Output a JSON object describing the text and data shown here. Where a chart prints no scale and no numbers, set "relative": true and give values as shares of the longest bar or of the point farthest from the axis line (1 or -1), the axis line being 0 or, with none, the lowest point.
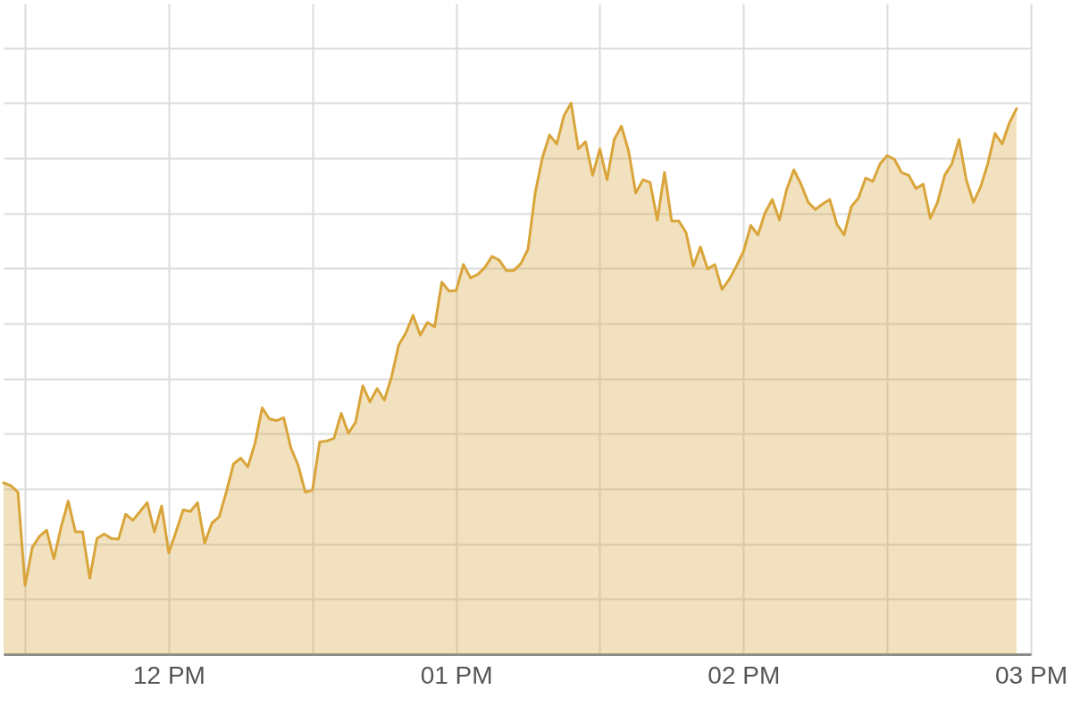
{
  "chart_data": {
    "type": "area",
    "relative": true,
    "color": "#d9a53b",
    "grid": true,
    "categories": [
      null,
      null,
      null,
      null,
      null,
      null,
      null,
      null,
      null,
      null,
      null,
      null,
      null,
      null,
      null,
      null,
      null,
      null,
      null,
      null,
      null,
      null,
      null,
      "12 PM",
      null,
      null,
      null,
      null,
      null,
      null,
      null,
      null,
      null,
      null,
      null,
      null,
      null,
      null,
      null,
      null,
      null,
      null,
      null,
      null,
      null,
      null,
      null,
      null,
      null,
      null,
      null,
      null,
      null,
      null,
      null,
      null,
      null,
      null,
      null,
      null,
      null,
      null,
      null,
      "01 PM",
      null,
      null,
      null,
      null,
      null,
      null,
      null,
      null,
      null,
      null,
      null,
      null,
      null,
      null,
      null,
      null,
      null,
      null,
      null,
      null,
      null,
      null,
      null,
      null,
      null,
      null,
      null,
      null,
      null,
      null,
      null,
      null,
      null,
      null,
      null,
      null,
      null,
      null,
      null,
      "02 PM",
      null,
      null,
      null,
      null,
      null,
      null,
      null,
      null,
      null,
      null,
      null,
      null,
      null,
      null,
      null,
      null,
      null,
      null,
      null,
      null,
      null,
      null,
      null,
      null,
      null,
      null,
      null,
      null,
      null,
      null,
      null,
      null,
      null,
      null,
      null,
      null,
      null,
      null,
      null,
      "03 PM"
    ],
    "values": [
      0.311,
      0.306,
      0.294,
      0.125,
      0.194,
      0.214,
      0.225,
      0.173,
      0.23,
      0.278,
      0.222,
      0.222,
      0.138,
      0.21,
      0.218,
      0.21,
      0.209,
      0.254,
      0.243,
      0.259,
      0.275,
      0.222,
      0.269,
      0.184,
      0.222,
      0.262,
      0.259,
      0.275,
      0.202,
      0.238,
      0.249,
      0.294,
      0.345,
      0.356,
      0.34,
      0.383,
      0.447,
      0.427,
      0.424,
      0.429,
      0.374,
      0.343,
      0.294,
      0.298,
      0.385,
      0.387,
      0.392,
      0.437,
      0.401,
      0.421,
      0.487,
      0.458,
      0.482,
      0.461,
      0.503,
      0.561,
      0.583,
      0.615,
      0.579,
      0.602,
      0.594,
      0.675,
      0.659,
      0.66,
      0.707,
      0.683,
      0.689,
      0.702,
      0.722,
      0.715,
      0.696,
      0.696,
      0.709,
      0.735,
      0.837,
      0.901,
      0.942,
      0.926,
      0.977,
      1,
      0.917,
      0.93,
      0.869,
      0.917,
      0.861,
      0.934,
      0.958,
      0.913,
      0.837,
      0.861,
      0.856,
      0.788,
      0.874,
      0.786,
      0.786,
      0.765,
      0.704,
      0.739,
      0.699,
      0.707,
      0.662,
      0.68,
      0.704,
      0.731,
      0.778,
      0.761,
      0.801,
      0.825,
      0.788,
      0.843,
      0.879,
      0.853,
      0.82,
      0.807,
      0.817,
      0.825,
      0.78,
      0.761,
      0.812,
      0.828,
      0.864,
      0.858,
      0.89,
      0.905,
      0.898,
      0.874,
      0.869,
      0.845,
      0.853,
      0.791,
      0.82,
      0.869,
      0.89,
      0.934,
      0.861,
      0.82,
      0.848,
      0.89,
      0.945,
      0.926,
      0.964,
      0.99,
      null,
      null
    ]
  }
}
